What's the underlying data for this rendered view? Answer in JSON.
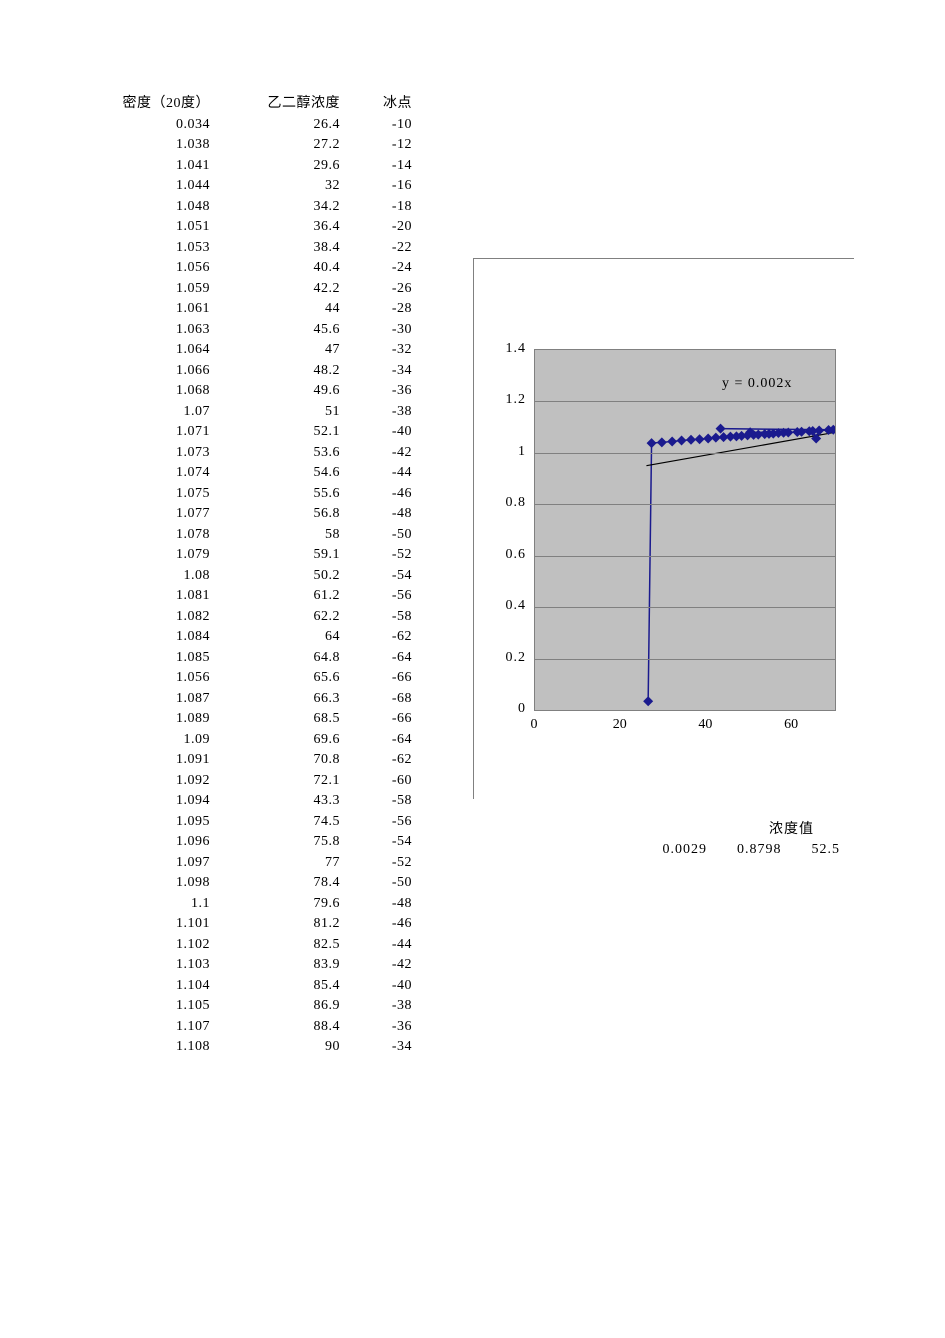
{
  "table": {
    "headers": {
      "density": "密度（20度）",
      "concentration": "乙二醇浓度",
      "freeze": "冰点"
    },
    "rows": [
      [
        "0.034",
        "26.4",
        "-10"
      ],
      [
        "1.038",
        "27.2",
        "-12"
      ],
      [
        "1.041",
        "29.6",
        "-14"
      ],
      [
        "1.044",
        "32",
        "-16"
      ],
      [
        "1.048",
        "34.2",
        "-18"
      ],
      [
        "1.051",
        "36.4",
        "-20"
      ],
      [
        "1.053",
        "38.4",
        "-22"
      ],
      [
        "1.056",
        "40.4",
        "-24"
      ],
      [
        "1.059",
        "42.2",
        "-26"
      ],
      [
        "1.061",
        "44",
        "-28"
      ],
      [
        "1.063",
        "45.6",
        "-30"
      ],
      [
        "1.064",
        "47",
        "-32"
      ],
      [
        "1.066",
        "48.2",
        "-34"
      ],
      [
        "1.068",
        "49.6",
        "-36"
      ],
      [
        "1.07",
        "51",
        "-38"
      ],
      [
        "1.071",
        "52.1",
        "-40"
      ],
      [
        "1.073",
        "53.6",
        "-42"
      ],
      [
        "1.074",
        "54.6",
        "-44"
      ],
      [
        "1.075",
        "55.6",
        "-46"
      ],
      [
        "1.077",
        "56.8",
        "-48"
      ],
      [
        "1.078",
        "58",
        "-50"
      ],
      [
        "1.079",
        "59.1",
        "-52"
      ],
      [
        "1.08",
        "50.2",
        "-54"
      ],
      [
        "1.081",
        "61.2",
        "-56"
      ],
      [
        "1.082",
        "62.2",
        "-58"
      ],
      [
        "1.084",
        "64",
        "-62"
      ],
      [
        "1.085",
        "64.8",
        "-64"
      ],
      [
        "1.056",
        "65.6",
        "-66"
      ],
      [
        "1.087",
        "66.3",
        "-68"
      ],
      [
        "1.089",
        "68.5",
        "-66"
      ],
      [
        "1.09",
        "69.6",
        "-64"
      ],
      [
        "1.091",
        "70.8",
        "-62"
      ],
      [
        "1.092",
        "72.1",
        "-60"
      ],
      [
        "1.094",
        "43.3",
        "-58"
      ],
      [
        "1.095",
        "74.5",
        "-56"
      ],
      [
        "1.096",
        "75.8",
        "-54"
      ],
      [
        "1.097",
        "77",
        "-52"
      ],
      [
        "1.098",
        "78.4",
        "-50"
      ],
      [
        "1.1",
        "79.6",
        "-48"
      ],
      [
        "1.101",
        "81.2",
        "-46"
      ],
      [
        "1.102",
        "82.5",
        "-44"
      ],
      [
        "1.103",
        "83.9",
        "-42"
      ],
      [
        "1.104",
        "85.4",
        "-40"
      ],
      [
        "1.105",
        "86.9",
        "-38"
      ],
      [
        "1.107",
        "88.4",
        "-36"
      ],
      [
        "1.108",
        "90",
        "-34"
      ]
    ]
  },
  "chart": {
    "type": "scatter-line",
    "equation_label": "y = 0.002x",
    "background_color": "#ffffff",
    "plot_background": "#c0c0c0",
    "grid_color": "#808080",
    "series_color": "#1a1a8e",
    "trendline_color": "#000000",
    "marker_style": "diamond",
    "marker_size": 5,
    "line_width": 1.5,
    "ylim": [
      0,
      1.4
    ],
    "ytick_step": 0.2,
    "y_ticks": [
      "0",
      "0.2",
      "0.4",
      "0.6",
      "0.8",
      "1",
      "1.2",
      "1.4"
    ],
    "xlim": [
      0,
      70
    ],
    "xtick_step": 20,
    "x_ticks": [
      "0",
      "20",
      "40",
      "60"
    ],
    "title_fontsize": 14,
    "label_fontsize": 14
  },
  "summary": {
    "header": "浓度值",
    "v1": "0.0029",
    "v2": "0.8798",
    "v3": "52.5"
  }
}
